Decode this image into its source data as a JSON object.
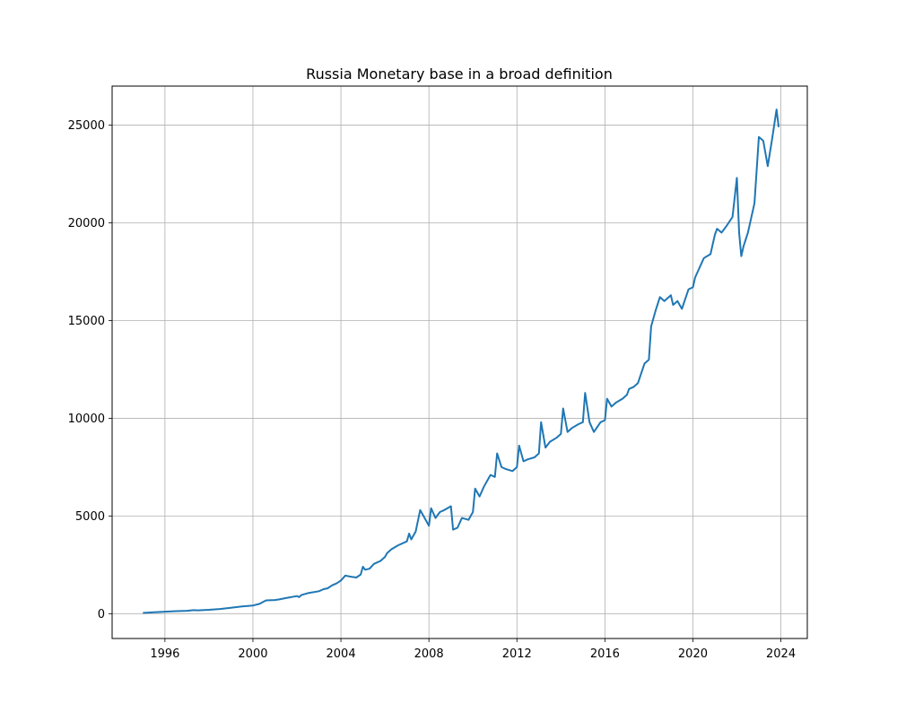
{
  "chart_data": {
    "type": "line",
    "title": "Russia Monetary base in a broad definition",
    "xlabel": "",
    "ylabel": "",
    "xlim": [
      1993.6,
      2025.2
    ],
    "ylim": [
      -1270,
      27000
    ],
    "x_ticks": [
      1996,
      2000,
      2004,
      2008,
      2012,
      2016,
      2020,
      2024
    ],
    "x_tick_labels": [
      "1996",
      "2000",
      "2004",
      "2008",
      "2012",
      "2016",
      "2020",
      "2024"
    ],
    "y_ticks": [
      0,
      5000,
      10000,
      15000,
      20000,
      25000
    ],
    "y_tick_labels": [
      "0",
      "5000",
      "10000",
      "15000",
      "20000",
      "25000"
    ],
    "grid": true,
    "legend": "none",
    "line_color": "#1f77b4",
    "series": [
      {
        "x": [
          1995.0,
          1995.5,
          1996.0,
          1996.5,
          1997.0,
          1997.3,
          1997.5,
          1998.0,
          1998.5,
          1999.0,
          1999.5,
          2000.0,
          2000.3,
          2000.5,
          2000.6,
          2001.0,
          2001.2,
          2001.5,
          2002.0,
          2002.1,
          2002.2,
          2002.5,
          2003.0,
          2003.2,
          2003.4,
          2003.6,
          2003.8,
          2004.0,
          2004.2,
          2004.4,
          2004.7,
          2004.9,
          2005.0,
          2005.1,
          2005.3,
          2005.5,
          2005.8,
          2006.0,
          2006.1,
          2006.3,
          2006.6,
          2007.0,
          2007.1,
          2007.2,
          2007.4,
          2007.6,
          2008.0,
          2008.1,
          2008.3,
          2008.5,
          2008.7,
          2009.0,
          2009.1,
          2009.3,
          2009.5,
          2009.8,
          2010.0,
          2010.1,
          2010.3,
          2010.5,
          2010.8,
          2011.0,
          2011.1,
          2011.3,
          2011.5,
          2011.8,
          2012.0,
          2012.1,
          2012.3,
          2012.5,
          2012.8,
          2013.0,
          2013.1,
          2013.3,
          2013.5,
          2013.8,
          2014.0,
          2014.1,
          2014.3,
          2014.5,
          2014.8,
          2015.0,
          2015.1,
          2015.3,
          2015.5,
          2015.8,
          2016.0,
          2016.1,
          2016.3,
          2016.5,
          2016.8,
          2017.0,
          2017.1,
          2017.3,
          2017.5,
          2017.8,
          2018.0,
          2018.1,
          2018.3,
          2018.5,
          2018.7,
          2019.0,
          2019.1,
          2019.3,
          2019.5,
          2019.8,
          2020.0,
          2020.1,
          2020.3,
          2020.5,
          2020.8,
          2021.0,
          2021.1,
          2021.3,
          2021.5,
          2021.8,
          2022.0,
          2022.1,
          2022.2,
          2022.3,
          2022.5,
          2022.8,
          2023.0,
          2023.2,
          2023.4,
          2023.6,
          2023.8,
          2023.9
        ],
        "y": [
          40,
          70,
          100,
          130,
          150,
          180,
          170,
          200,
          240,
          300,
          370,
          420,
          500,
          620,
          680,
          700,
          730,
          800,
          900,
          850,
          950,
          1050,
          1150,
          1250,
          1300,
          1450,
          1550,
          1700,
          1950,
          1900,
          1850,
          2000,
          2400,
          2250,
          2300,
          2550,
          2700,
          2900,
          3100,
          3300,
          3500,
          3700,
          4100,
          3800,
          4200,
          5300,
          4500,
          5400,
          4900,
          5200,
          5300,
          5500,
          4300,
          4400,
          4900,
          4800,
          5200,
          6400,
          6000,
          6500,
          7100,
          7000,
          8200,
          7500,
          7400,
          7300,
          7500,
          8600,
          7800,
          7900,
          8000,
          8200,
          9800,
          8500,
          8800,
          9000,
          9200,
          10500,
          9300,
          9500,
          9700,
          9800,
          11300,
          9800,
          9300,
          9800,
          9900,
          11000,
          10600,
          10800,
          11000,
          11200,
          11500,
          11600,
          11800,
          12800,
          13000,
          14700,
          15500,
          16200,
          16000,
          16300,
          15800,
          16000,
          15600,
          16600,
          16700,
          17200,
          17700,
          18200,
          18400,
          19400,
          19700,
          19500,
          19800,
          20300,
          22300,
          19500,
          18300,
          18800,
          19500,
          21000,
          24400,
          24200,
          22900,
          24300,
          25800,
          24900
        ]
      }
    ]
  }
}
